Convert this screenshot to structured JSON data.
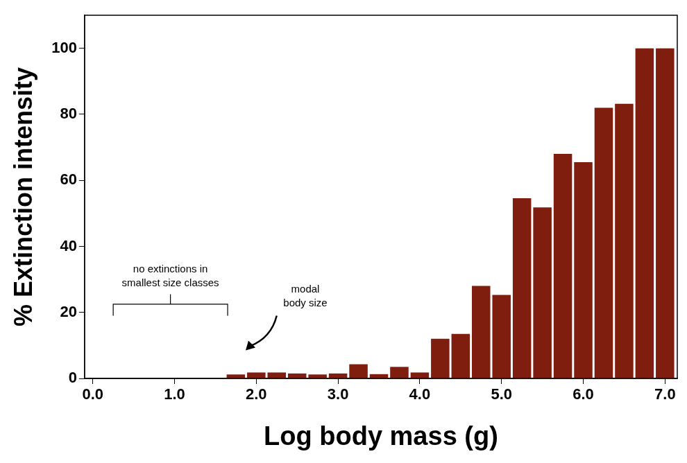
{
  "chart_data": {
    "type": "bar",
    "x_label": "Log body mass (g)",
    "y_label": "% Extinction intensity",
    "x": [
      1.75,
      2.0,
      2.25,
      2.5,
      2.75,
      3.0,
      3.25,
      3.5,
      3.75,
      4.0,
      4.25,
      4.5,
      4.75,
      5.0,
      5.25,
      5.5,
      5.75,
      6.0,
      6.25,
      6.5,
      6.75,
      7.0
    ],
    "values": [
      1.2,
      1.8,
      1.8,
      1.5,
      1.2,
      1.5,
      4.3,
      1.3,
      3.5,
      1.8,
      12,
      13.5,
      28,
      25.3,
      54.6,
      51.8,
      68,
      65.5,
      82,
      83.2,
      100,
      100
    ],
    "color": "#7f1d0e",
    "xlim": [
      -0.1,
      7.15
    ],
    "xticks": [
      {
        "value": 0,
        "label": "0.0"
      },
      {
        "value": 1,
        "label": "1.0"
      },
      {
        "value": 2,
        "label": "2.0"
      },
      {
        "value": 3,
        "label": "3.0"
      },
      {
        "value": 4,
        "label": "4.0"
      },
      {
        "value": 5,
        "label": "5.0"
      },
      {
        "value": 6,
        "label": "6.0"
      },
      {
        "value": 7,
        "label": "7.0"
      }
    ],
    "ylim": [
      0,
      110
    ],
    "yticks": [
      0,
      20,
      40,
      60,
      80,
      100
    ],
    "grid": false,
    "annotations": [
      [
        "no extinctions in",
        "smallest size classes"
      ],
      [
        "modal",
        "body size"
      ]
    ]
  }
}
